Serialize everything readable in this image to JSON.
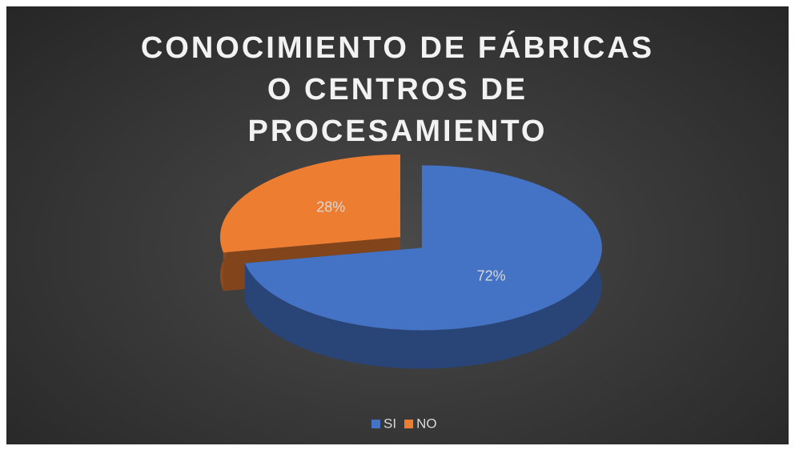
{
  "chart_data": {
    "type": "pie3d",
    "title": "CONOCIMIENTO DE FÁBRICAS O CENTROS DE PROCESAMIENTO",
    "categories": [
      "SI",
      "NO"
    ],
    "values": [
      72,
      28
    ],
    "value_labels": [
      "72%",
      "28%"
    ],
    "colors": [
      "#4472c4",
      "#ed7d31"
    ],
    "legend": "bottom"
  }
}
